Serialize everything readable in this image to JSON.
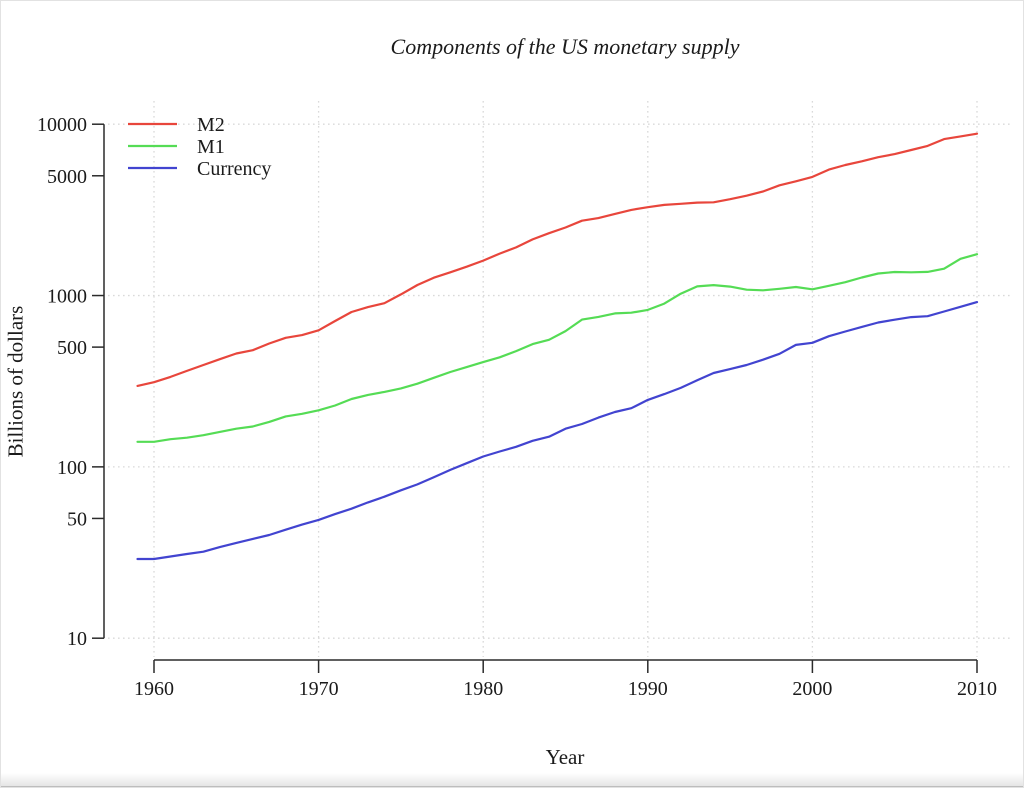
{
  "page": {
    "title": "Components of the US monetary supply",
    "xlabel": "Year",
    "ylabel": "Billions of dollars"
  },
  "chart_data": {
    "type": "line",
    "title": "Components of the US monetary supply",
    "xlabel": "Year",
    "ylabel": "Billions of dollars",
    "y_scale": "log10",
    "xlim": [
      1959,
      2010
    ],
    "ylim": [
      10,
      10000
    ],
    "x_ticks": [
      1960,
      1970,
      1980,
      1990,
      2000,
      2010
    ],
    "y_ticks": [
      10000,
      5000,
      1000,
      500,
      100,
      50,
      10
    ],
    "grid_y": [
      10,
      100,
      1000,
      10000
    ],
    "grid": "dotted",
    "legend_position": "top-left",
    "years": [
      1959,
      1960,
      1961,
      1962,
      1963,
      1964,
      1965,
      1966,
      1967,
      1968,
      1969,
      1970,
      1971,
      1972,
      1973,
      1974,
      1975,
      1976,
      1977,
      1978,
      1979,
      1980,
      1981,
      1982,
      1983,
      1984,
      1985,
      1986,
      1987,
      1988,
      1989,
      1990,
      1991,
      1992,
      1993,
      1994,
      1995,
      1996,
      1997,
      1998,
      1999,
      2000,
      2001,
      2002,
      2003,
      2004,
      2005,
      2006,
      2007,
      2008,
      2009,
      2010
    ],
    "series": [
      {
        "name": "M2",
        "color": "#e8463c",
        "values": [
          297,
          312,
          335,
          363,
          393,
          425,
          459,
          480,
          525,
          567,
          588,
          627,
          710,
          802,
          856,
          902,
          1016,
          1152,
          1271,
          1366,
          1474,
          1600,
          1756,
          1911,
          2127,
          2312,
          2497,
          2734,
          2832,
          2996,
          3160,
          3279,
          3380,
          3433,
          3487,
          3502,
          3649,
          3824,
          4046,
          4401,
          4643,
          4925,
          5433,
          5779,
          6071,
          6421,
          6692,
          7072,
          7471,
          8190,
          8493,
          8799
        ]
      },
      {
        "name": "M1",
        "color": "#55dc55",
        "values": [
          140,
          140,
          145,
          148,
          153,
          160,
          167,
          172,
          183,
          197,
          204,
          214,
          228,
          249,
          263,
          274,
          287,
          306,
          331,
          358,
          382,
          409,
          436,
          474,
          521,
          552,
          620,
          724,
          750,
          787,
          794,
          825,
          897,
          1025,
          1130,
          1150,
          1127,
          1081,
          1073,
          1095,
          1122,
          1088,
          1140,
          1196,
          1274,
          1344,
          1372,
          1367,
          1374,
          1435,
          1638,
          1742
        ]
      },
      {
        "name": "Currency",
        "color": "#4244d0",
        "values": [
          29,
          29,
          30,
          31,
          32,
          34,
          36,
          38,
          40,
          43,
          46,
          49,
          53,
          57,
          62,
          67,
          73,
          79,
          87,
          96,
          105,
          115,
          123,
          131,
          142,
          150,
          167,
          178,
          194,
          209,
          220,
          246,
          266,
          289,
          320,
          353,
          372,
          393,
          422,
          457,
          515,
          530,
          579,
          617,
          656,
          696,
          723,
          748,
          758,
          807,
          860,
          915
        ]
      }
    ]
  },
  "colors": {
    "axis": "#2b2b2b",
    "grid": "#d9d9d9",
    "text": "#1b1b1b",
    "background": "#ffffff"
  }
}
